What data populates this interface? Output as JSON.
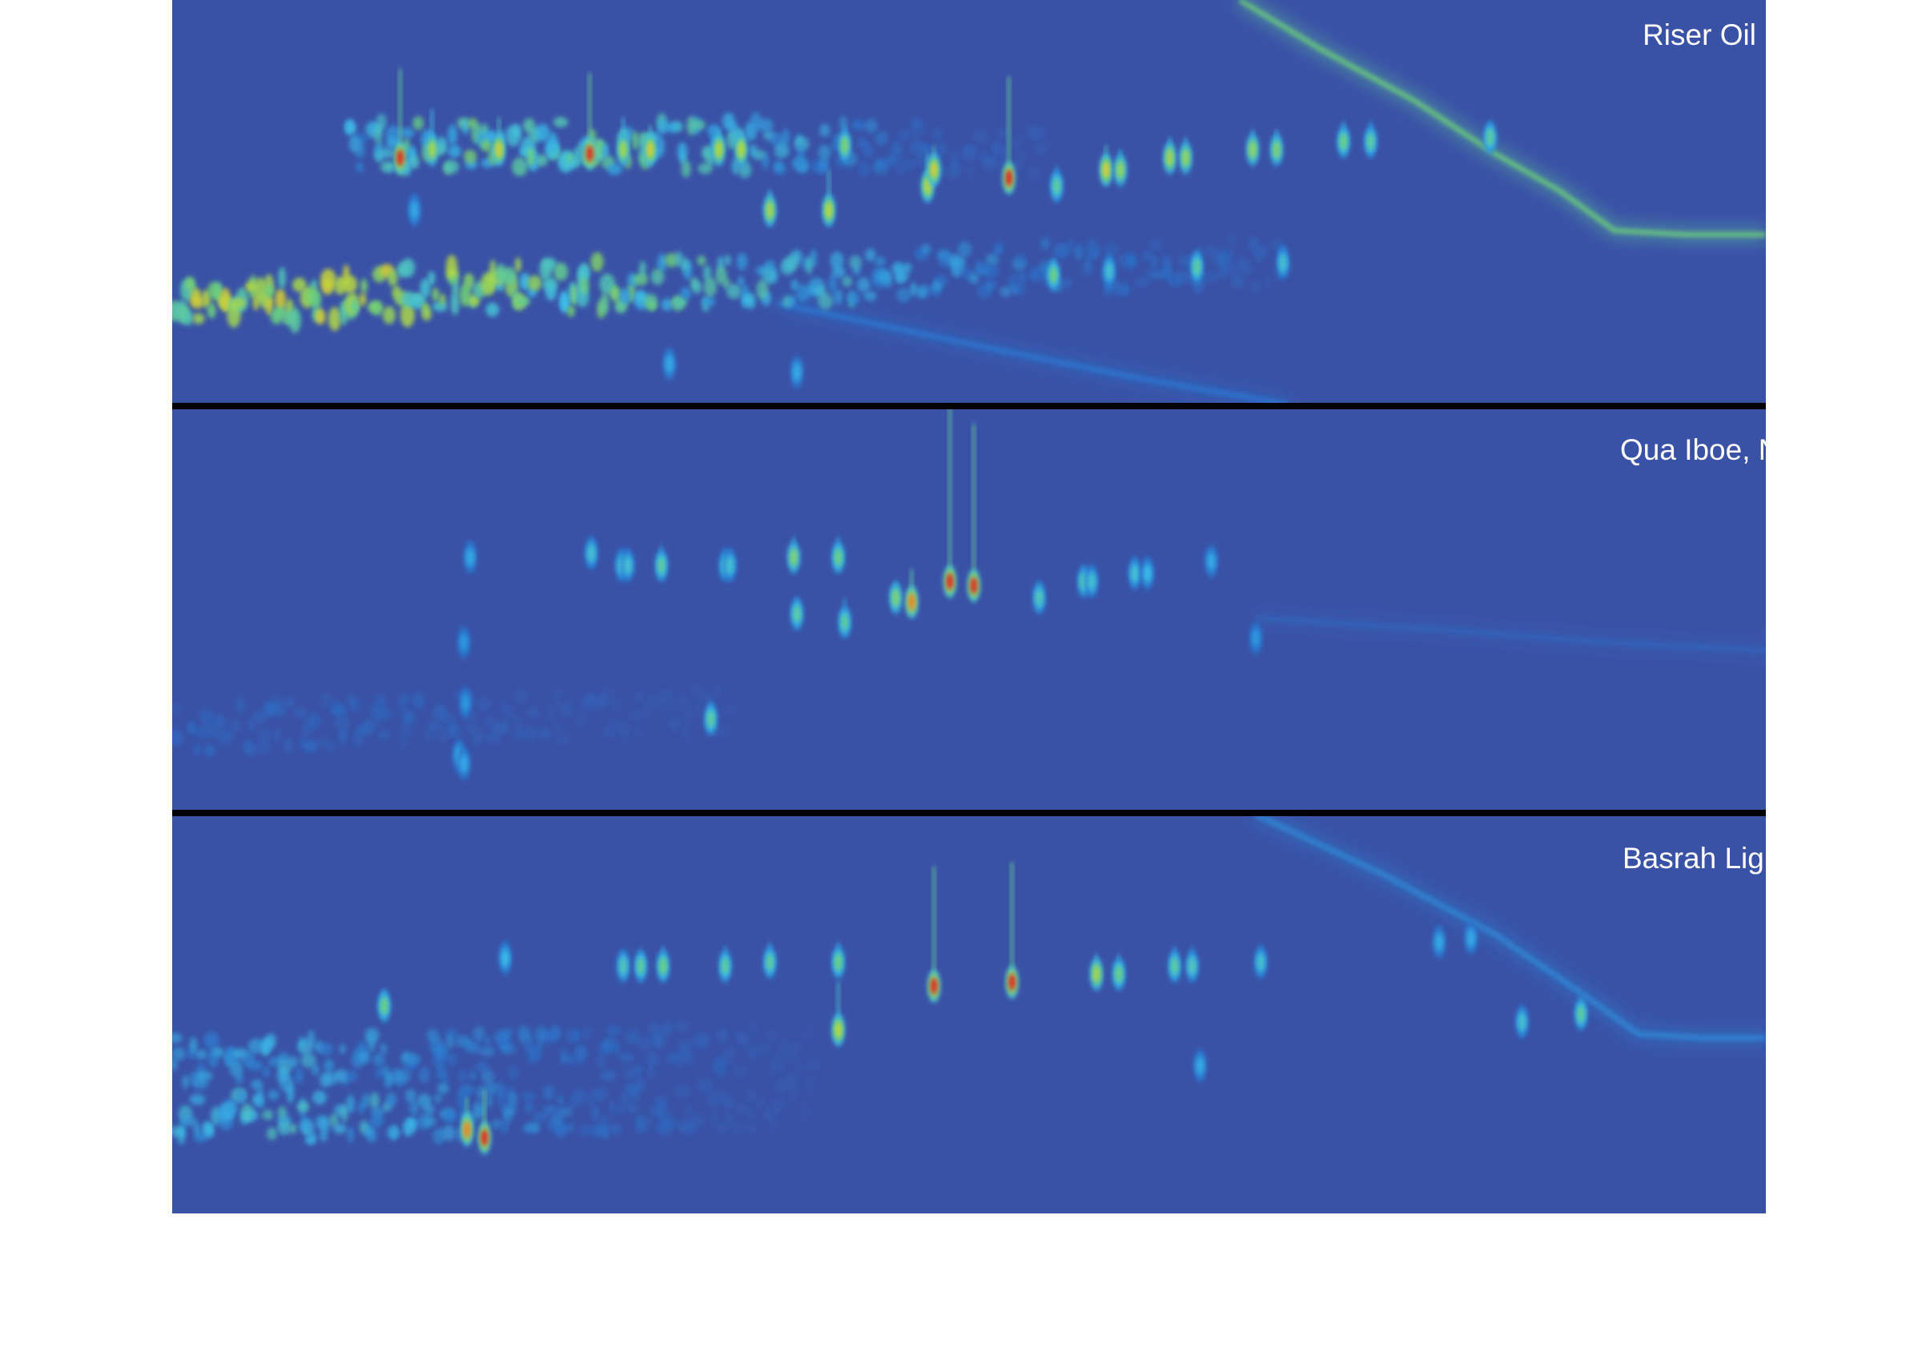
{
  "chart_data": {
    "type": "heatmap",
    "panels": [
      {
        "label": "Riser Oil",
        "background": "#3a52a6",
        "clouds": [
          {
            "x": [
              0.0,
              0.05,
              0.1,
              0.15,
              0.2,
              0.25,
              0.3,
              0.35,
              0.4,
              0.45,
              0.5,
              0.55,
              0.6,
              0.65,
              0.7
            ],
            "y": [
              0.75,
              0.74,
              0.73,
              0.72,
              0.71,
              0.71,
              0.7,
              0.7,
              0.69,
              0.68,
              0.67,
              0.66,
              0.66,
              0.65,
              0.65
            ],
            "intensity": [
              0.7,
              0.72,
              0.72,
              0.7,
              0.65,
              0.58,
              0.52,
              0.48,
              0.42,
              0.36,
              0.3,
              0.25,
              0.2,
              0.16,
              0.12
            ]
          },
          {
            "x": [
              0.11,
              0.15,
              0.2,
              0.25,
              0.3,
              0.35,
              0.4,
              0.45,
              0.5,
              0.55
            ],
            "y": [
              0.36,
              0.36,
              0.36,
              0.36,
              0.36,
              0.36,
              0.36,
              0.36,
              0.37,
              0.38
            ],
            "intensity": [
              0.35,
              0.5,
              0.55,
              0.55,
              0.5,
              0.45,
              0.35,
              0.2,
              0.12,
              0.08
            ]
          }
        ],
        "peaks": [
          {
            "x": 0.143,
            "y": 0.39,
            "intensity": 1.0,
            "streak": 0.22
          },
          {
            "x": 0.163,
            "y": 0.37,
            "intensity": 0.75,
            "streak": 0.1
          },
          {
            "x": 0.205,
            "y": 0.37,
            "intensity": 0.85,
            "streak": 0.08
          },
          {
            "x": 0.262,
            "y": 0.38,
            "intensity": 1.0,
            "streak": 0.2
          },
          {
            "x": 0.283,
            "y": 0.37,
            "intensity": 0.75,
            "streak": 0.08
          },
          {
            "x": 0.3,
            "y": 0.37,
            "intensity": 0.85,
            "streak": 0.06
          },
          {
            "x": 0.343,
            "y": 0.37,
            "intensity": 0.8,
            "streak": 0.05
          },
          {
            "x": 0.357,
            "y": 0.37,
            "intensity": 0.8,
            "streak": 0.05
          },
          {
            "x": 0.375,
            "y": 0.52,
            "intensity": 0.75,
            "streak": 0.05
          },
          {
            "x": 0.412,
            "y": 0.52,
            "intensity": 0.8,
            "streak": 0.1
          },
          {
            "x": 0.422,
            "y": 0.36,
            "intensity": 0.65,
            "streak": 0.05
          },
          {
            "x": 0.474,
            "y": 0.46,
            "intensity": 0.8,
            "streak": 0.08
          },
          {
            "x": 0.478,
            "y": 0.42,
            "intensity": 0.85,
            "streak": 0.06
          },
          {
            "x": 0.525,
            "y": 0.44,
            "intensity": 1.0,
            "streak": 0.25
          },
          {
            "x": 0.555,
            "y": 0.46,
            "intensity": 0.55,
            "streak": 0.05
          },
          {
            "x": 0.586,
            "y": 0.42,
            "intensity": 0.85,
            "streak": 0.06
          },
          {
            "x": 0.595,
            "y": 0.42,
            "intensity": 0.7,
            "streak": 0.05
          },
          {
            "x": 0.626,
            "y": 0.39,
            "intensity": 0.75,
            "streak": 0.05
          },
          {
            "x": 0.636,
            "y": 0.39,
            "intensity": 0.7,
            "streak": 0.05
          },
          {
            "x": 0.678,
            "y": 0.37,
            "intensity": 0.7,
            "streak": 0.05
          },
          {
            "x": 0.693,
            "y": 0.37,
            "intensity": 0.65,
            "streak": 0.05
          },
          {
            "x": 0.735,
            "y": 0.35,
            "intensity": 0.6,
            "streak": 0.05
          },
          {
            "x": 0.752,
            "y": 0.35,
            "intensity": 0.55,
            "streak": 0.05
          },
          {
            "x": 0.152,
            "y": 0.52,
            "intensity": 0.35,
            "streak": 0.04
          },
          {
            "x": 0.553,
            "y": 0.68,
            "intensity": 0.6,
            "streak": 0.04
          },
          {
            "x": 0.588,
            "y": 0.67,
            "intensity": 0.45,
            "streak": 0.04
          },
          {
            "x": 0.643,
            "y": 0.66,
            "intensity": 0.55,
            "streak": 0.04
          },
          {
            "x": 0.697,
            "y": 0.65,
            "intensity": 0.45,
            "streak": 0.04
          },
          {
            "x": 0.827,
            "y": 0.34,
            "intensity": 0.55,
            "streak": 0.04
          },
          {
            "x": 0.312,
            "y": 0.9,
            "intensity": 0.35,
            "streak": 0.03
          },
          {
            "x": 0.392,
            "y": 0.92,
            "intensity": 0.35,
            "streak": 0.03
          }
        ],
        "bands": [
          {
            "x": [
              0.67,
              0.72,
              0.78,
              0.83,
              0.87,
              0.905,
              0.95,
              1.0
            ],
            "y": [
              0.0,
              0.12,
              0.25,
              0.38,
              0.47,
              0.57,
              0.58,
              0.58
            ],
            "intensity": 0.6
          },
          {
            "x": [
              0.38,
              0.5,
              0.6,
              0.7
            ],
            "y": [
              0.75,
              0.85,
              0.93,
              1.0
            ],
            "intensity": 0.2
          }
        ]
      },
      {
        "label": "Qua Iboe, Nigeria",
        "background": "#3a52a6",
        "clouds": [
          {
            "x": [
              0.0,
              0.05,
              0.1,
              0.15,
              0.2,
              0.25,
              0.3,
              0.35
            ],
            "y": [
              0.8,
              0.79,
              0.78,
              0.77,
              0.76,
              0.76,
              0.75,
              0.75
            ],
            "intensity": [
              0.15,
              0.16,
              0.15,
              0.14,
              0.12,
              0.1,
              0.08,
              0.06
            ]
          }
        ],
        "peaks": [
          {
            "x": 0.187,
            "y": 0.37,
            "intensity": 0.35,
            "streak": 0.04
          },
          {
            "x": 0.183,
            "y": 0.58,
            "intensity": 0.3,
            "streak": 0.03
          },
          {
            "x": 0.184,
            "y": 0.73,
            "intensity": 0.3,
            "streak": 0.03
          },
          {
            "x": 0.18,
            "y": 0.86,
            "intensity": 0.35,
            "streak": 0.03
          },
          {
            "x": 0.183,
            "y": 0.88,
            "intensity": 0.35,
            "streak": 0.03
          },
          {
            "x": 0.263,
            "y": 0.36,
            "intensity": 0.45,
            "streak": 0.04
          },
          {
            "x": 0.282,
            "y": 0.39,
            "intensity": 0.45,
            "streak": 0.04
          },
          {
            "x": 0.286,
            "y": 0.39,
            "intensity": 0.45,
            "streak": 0.04
          },
          {
            "x": 0.307,
            "y": 0.39,
            "intensity": 0.55,
            "streak": 0.05
          },
          {
            "x": 0.338,
            "y": 0.77,
            "intensity": 0.55,
            "streak": 0.04
          },
          {
            "x": 0.347,
            "y": 0.39,
            "intensity": 0.45,
            "streak": 0.04
          },
          {
            "x": 0.35,
            "y": 0.39,
            "intensity": 0.45,
            "streak": 0.04
          },
          {
            "x": 0.39,
            "y": 0.37,
            "intensity": 0.65,
            "streak": 0.05
          },
          {
            "x": 0.392,
            "y": 0.51,
            "intensity": 0.55,
            "streak": 0.04
          },
          {
            "x": 0.418,
            "y": 0.37,
            "intensity": 0.6,
            "streak": 0.05
          },
          {
            "x": 0.422,
            "y": 0.53,
            "intensity": 0.55,
            "streak": 0.06
          },
          {
            "x": 0.454,
            "y": 0.47,
            "intensity": 0.65,
            "streak": 0.04
          },
          {
            "x": 0.464,
            "y": 0.48,
            "intensity": 0.95,
            "streak": 0.08
          },
          {
            "x": 0.488,
            "y": 0.43,
            "intensity": 1.0,
            "streak": 0.45
          },
          {
            "x": 0.503,
            "y": 0.44,
            "intensity": 1.0,
            "streak": 0.4
          },
          {
            "x": 0.544,
            "y": 0.47,
            "intensity": 0.5,
            "streak": 0.04
          },
          {
            "x": 0.572,
            "y": 0.43,
            "intensity": 0.5,
            "streak": 0.04
          },
          {
            "x": 0.577,
            "y": 0.43,
            "intensity": 0.45,
            "streak": 0.04
          },
          {
            "x": 0.604,
            "y": 0.41,
            "intensity": 0.45,
            "streak": 0.04
          },
          {
            "x": 0.612,
            "y": 0.41,
            "intensity": 0.4,
            "streak": 0.04
          },
          {
            "x": 0.652,
            "y": 0.38,
            "intensity": 0.35,
            "streak": 0.03
          },
          {
            "x": 0.68,
            "y": 0.57,
            "intensity": 0.3,
            "streak": 0.03
          }
        ],
        "bands": [
          {
            "x": [
              0.68,
              0.8,
              0.9,
              1.0
            ],
            "y": [
              0.52,
              0.55,
              0.58,
              0.6
            ],
            "intensity": 0.1
          }
        ]
      },
      {
        "label": "Basrah Light, Iraq",
        "background": "#3a52a6",
        "clouds": [
          {
            "x": [
              0.0,
              0.05,
              0.1,
              0.15,
              0.2,
              0.25,
              0.3,
              0.35,
              0.4
            ],
            "y": [
              0.62,
              0.62,
              0.61,
              0.61,
              0.6,
              0.6,
              0.59,
              0.59,
              0.58
            ],
            "intensity": [
              0.35,
              0.38,
              0.35,
              0.3,
              0.25,
              0.2,
              0.15,
              0.1,
              0.07
            ]
          },
          {
            "x": [
              0.0,
              0.05,
              0.1,
              0.15,
              0.2,
              0.25,
              0.3,
              0.35,
              0.4
            ],
            "y": [
              0.77,
              0.76,
              0.76,
              0.75,
              0.74,
              0.74,
              0.73,
              0.73,
              0.72
            ],
            "intensity": [
              0.4,
              0.45,
              0.42,
              0.35,
              0.28,
              0.22,
              0.16,
              0.1,
              0.07
            ]
          }
        ],
        "peaks": [
          {
            "x": 0.185,
            "y": 0.79,
            "intensity": 0.95,
            "streak": 0.08
          },
          {
            "x": 0.196,
            "y": 0.81,
            "intensity": 1.0,
            "streak": 0.12
          },
          {
            "x": 0.209,
            "y": 0.36,
            "intensity": 0.4,
            "streak": 0.04
          },
          {
            "x": 0.283,
            "y": 0.38,
            "intensity": 0.5,
            "streak": 0.04
          },
          {
            "x": 0.294,
            "y": 0.38,
            "intensity": 0.55,
            "streak": 0.04
          },
          {
            "x": 0.308,
            "y": 0.38,
            "intensity": 0.6,
            "streak": 0.05
          },
          {
            "x": 0.347,
            "y": 0.38,
            "intensity": 0.55,
            "streak": 0.05
          },
          {
            "x": 0.375,
            "y": 0.37,
            "intensity": 0.55,
            "streak": 0.05
          },
          {
            "x": 0.418,
            "y": 0.37,
            "intensity": 0.6,
            "streak": 0.05
          },
          {
            "x": 0.418,
            "y": 0.54,
            "intensity": 0.8,
            "streak": 0.12
          },
          {
            "x": 0.478,
            "y": 0.43,
            "intensity": 1.0,
            "streak": 0.3
          },
          {
            "x": 0.527,
            "y": 0.42,
            "intensity": 1.0,
            "streak": 0.3
          },
          {
            "x": 0.58,
            "y": 0.4,
            "intensity": 0.75,
            "streak": 0.05
          },
          {
            "x": 0.594,
            "y": 0.4,
            "intensity": 0.6,
            "streak": 0.05
          },
          {
            "x": 0.629,
            "y": 0.38,
            "intensity": 0.55,
            "streak": 0.05
          },
          {
            "x": 0.64,
            "y": 0.38,
            "intensity": 0.5,
            "streak": 0.05
          },
          {
            "x": 0.683,
            "y": 0.37,
            "intensity": 0.45,
            "streak": 0.04
          },
          {
            "x": 0.795,
            "y": 0.32,
            "intensity": 0.35,
            "streak": 0.04
          },
          {
            "x": 0.815,
            "y": 0.31,
            "intensity": 0.35,
            "streak": 0.04
          },
          {
            "x": 0.847,
            "y": 0.52,
            "intensity": 0.45,
            "streak": 0.04
          },
          {
            "x": 0.884,
            "y": 0.5,
            "intensity": 0.55,
            "streak": 0.04
          },
          {
            "x": 0.133,
            "y": 0.48,
            "intensity": 0.6,
            "streak": 0.04
          },
          {
            "x": 0.645,
            "y": 0.63,
            "intensity": 0.35,
            "streak": 0.03
          }
        ],
        "bands": [
          {
            "x": [
              0.68,
              0.76,
              0.83,
              0.885,
              0.92,
              0.96,
              1.0
            ],
            "y": [
              0.0,
              0.15,
              0.3,
              0.45,
              0.55,
              0.56,
              0.56
            ],
            "intensity": 0.25
          }
        ]
      }
    ]
  }
}
